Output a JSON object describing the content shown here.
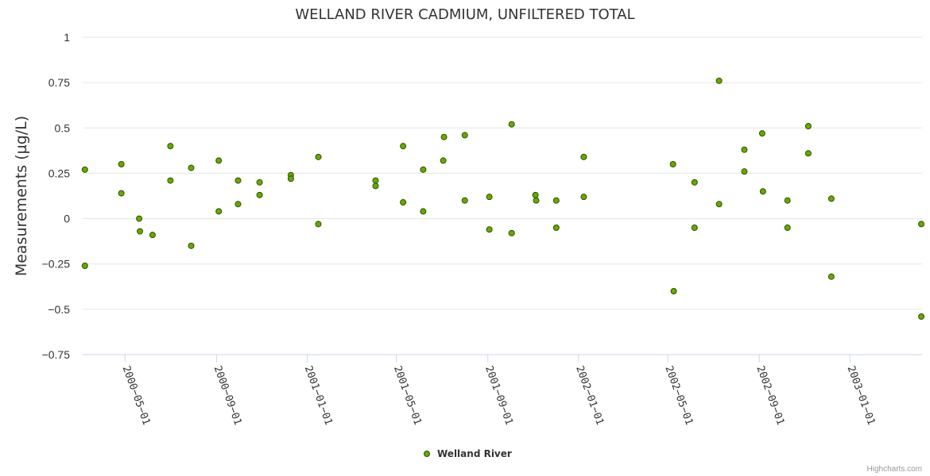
{
  "chart_data": {
    "type": "scatter",
    "title": "WELLAND RIVER CADMIUM, UNFILTERED TOTAL",
    "ylabel": "Measurements (µg/L)",
    "xlabel": "",
    "ylim": [
      -0.75,
      1
    ],
    "yticks": [
      {
        "value": 1,
        "label": "1"
      },
      {
        "value": 0.75,
        "label": "0.75"
      },
      {
        "value": 0.5,
        "label": "0.5"
      },
      {
        "value": 0.25,
        "label": "0.25"
      },
      {
        "value": 0,
        "label": "0"
      },
      {
        "value": -0.25,
        "label": "−0.25"
      },
      {
        "value": -0.5,
        "label": "−0.5"
      },
      {
        "value": -0.75,
        "label": "−0.75"
      }
    ],
    "xlim": [
      "2000-03-05",
      "2003-04-08"
    ],
    "xticks": [
      {
        "date": "2000-05-01",
        "label": "2000−05−01"
      },
      {
        "date": "2000-09-01",
        "label": "2000−09−01"
      },
      {
        "date": "2001-01-01",
        "label": "2001−01−01"
      },
      {
        "date": "2001-05-01",
        "label": "2001−05−01"
      },
      {
        "date": "2001-09-01",
        "label": "2001−09−01"
      },
      {
        "date": "2002-01-01",
        "label": "2002−01−01"
      },
      {
        "date": "2002-05-01",
        "label": "2002−05−01"
      },
      {
        "date": "2002-09-01",
        "label": "2002−09−01"
      },
      {
        "date": "2003-01-01",
        "label": "2003−01−01"
      }
    ],
    "series": [
      {
        "name": "Welland River",
        "color": "#66aa00",
        "points": [
          {
            "x": "2000-03-08",
            "y": 0.27
          },
          {
            "x": "2000-03-08",
            "y": -0.26
          },
          {
            "x": "2000-04-26",
            "y": 0.3
          },
          {
            "x": "2000-04-26",
            "y": 0.14
          },
          {
            "x": "2000-05-20",
            "y": 0.0
          },
          {
            "x": "2000-05-21",
            "y": -0.07
          },
          {
            "x": "2000-06-07",
            "y": -0.09
          },
          {
            "x": "2000-07-01",
            "y": 0.4
          },
          {
            "x": "2000-07-01",
            "y": 0.21
          },
          {
            "x": "2000-07-29",
            "y": 0.28
          },
          {
            "x": "2000-07-29",
            "y": -0.15
          },
          {
            "x": "2000-09-04",
            "y": 0.32
          },
          {
            "x": "2000-09-04",
            "y": 0.04
          },
          {
            "x": "2000-09-30",
            "y": 0.21
          },
          {
            "x": "2000-09-30",
            "y": 0.08
          },
          {
            "x": "2000-10-29",
            "y": 0.2
          },
          {
            "x": "2000-10-29",
            "y": 0.13
          },
          {
            "x": "2000-12-10",
            "y": 0.24
          },
          {
            "x": "2000-12-10",
            "y": 0.22
          },
          {
            "x": "2001-01-16",
            "y": 0.34
          },
          {
            "x": "2001-01-16",
            "y": -0.03
          },
          {
            "x": "2001-04-03",
            "y": 0.21
          },
          {
            "x": "2001-04-03",
            "y": 0.18
          },
          {
            "x": "2001-05-10",
            "y": 0.4
          },
          {
            "x": "2001-05-10",
            "y": 0.09
          },
          {
            "x": "2001-06-06",
            "y": 0.27
          },
          {
            "x": "2001-06-06",
            "y": 0.04
          },
          {
            "x": "2001-07-04",
            "y": 0.45
          },
          {
            "x": "2001-07-03",
            "y": 0.32
          },
          {
            "x": "2001-08-01",
            "y": 0.46
          },
          {
            "x": "2001-08-01",
            "y": 0.1
          },
          {
            "x": "2001-09-03",
            "y": 0.12
          },
          {
            "x": "2001-09-03",
            "y": -0.06
          },
          {
            "x": "2001-10-03",
            "y": 0.52
          },
          {
            "x": "2001-10-03",
            "y": -0.08
          },
          {
            "x": "2001-11-04",
            "y": 0.13
          },
          {
            "x": "2001-11-05",
            "y": 0.1
          },
          {
            "x": "2001-12-02",
            "y": 0.1
          },
          {
            "x": "2001-12-02",
            "y": -0.05
          },
          {
            "x": "2002-01-08",
            "y": 0.34
          },
          {
            "x": "2002-01-08",
            "y": 0.12
          },
          {
            "x": "2002-05-08",
            "y": 0.3
          },
          {
            "x": "2002-05-09",
            "y": -0.4
          },
          {
            "x": "2002-06-06",
            "y": 0.2
          },
          {
            "x": "2002-06-06",
            "y": -0.05
          },
          {
            "x": "2002-07-09",
            "y": 0.76
          },
          {
            "x": "2002-07-09",
            "y": 0.08
          },
          {
            "x": "2002-08-12",
            "y": 0.38
          },
          {
            "x": "2002-08-12",
            "y": 0.26
          },
          {
            "x": "2002-09-05",
            "y": 0.47
          },
          {
            "x": "2002-09-06",
            "y": 0.15
          },
          {
            "x": "2002-10-09",
            "y": 0.1
          },
          {
            "x": "2002-10-09",
            "y": -0.05
          },
          {
            "x": "2002-11-06",
            "y": 0.51
          },
          {
            "x": "2002-11-06",
            "y": 0.36
          },
          {
            "x": "2002-12-07",
            "y": 0.11
          },
          {
            "x": "2002-12-07",
            "y": -0.32
          },
          {
            "x": "2003-04-07",
            "y": -0.03
          },
          {
            "x": "2003-04-07",
            "y": -0.54
          }
        ]
      }
    ],
    "legend": {
      "position": "bottom-center",
      "label": "Welland River"
    }
  },
  "credits": "Highcharts.com"
}
